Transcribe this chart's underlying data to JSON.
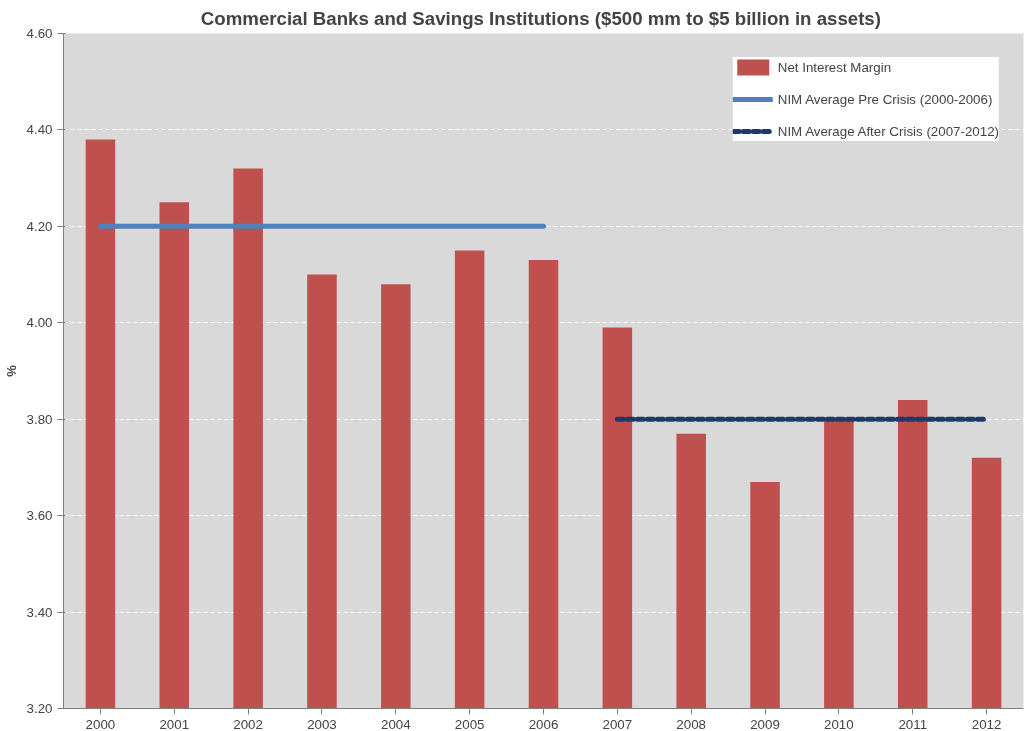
{
  "chart_data": {
    "type": "bar",
    "title": "Commercial Banks and Savings Institutions  ($500 mm to $5 billion in assets)",
    "ylabel": "%",
    "categories": [
      "2000",
      "2001",
      "2002",
      "2003",
      "2004",
      "2005",
      "2006",
      "2007",
      "2008",
      "2009",
      "2010",
      "2011",
      "2012"
    ],
    "series": [
      {
        "name": "Net Interest Margin",
        "color": "#c0504d",
        "values": [
          4.38,
          4.25,
          4.32,
          4.1,
          4.08,
          4.15,
          4.13,
          3.99,
          3.77,
          3.67,
          3.8,
          3.84,
          3.72
        ]
      },
      {
        "name": "NIM Average Pre Crisis (2000-2006)",
        "type": "line",
        "line_style": "solid",
        "color": "#4f81bd",
        "values": [
          4.2,
          4.2,
          4.2,
          4.2,
          4.2,
          4.2,
          4.2,
          null,
          null,
          null,
          null,
          null,
          null
        ]
      },
      {
        "name": "NIM Average After Crisis (2007-2012)",
        "type": "line",
        "line_style": "dashed",
        "color": "#1f3864",
        "values": [
          null,
          null,
          null,
          null,
          null,
          null,
          null,
          3.8,
          3.8,
          3.8,
          3.8,
          3.8,
          3.8
        ]
      }
    ],
    "ylim": [
      3.2,
      4.6
    ],
    "yticks": [
      {
        "value": 3.2,
        "label": "3.20"
      },
      {
        "value": 3.4,
        "label": "3.40"
      },
      {
        "value": 3.6,
        "label": "3.60"
      },
      {
        "value": 3.8,
        "label": "3.80"
      },
      {
        "value": 4.0,
        "label": "4.00"
      },
      {
        "value": 4.2,
        "label": "4.20"
      },
      {
        "value": 4.4,
        "label": "4.40"
      },
      {
        "value": 4.6,
        "label": "4.60"
      }
    ],
    "grid": "y",
    "legend": "top right"
  }
}
